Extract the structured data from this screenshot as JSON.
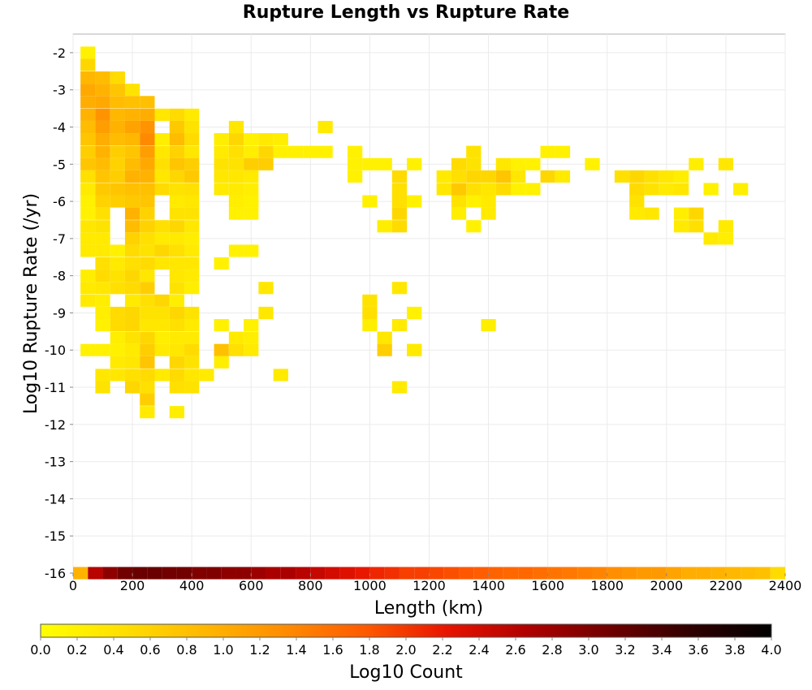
{
  "chart_data": {
    "type": "heatmap",
    "title": "Rupture Length vs Rupture Rate",
    "xlabel": "Length (km)",
    "ylabel": "Log10 Rupture Rate (/yr)",
    "xlim": [
      0,
      2400
    ],
    "ylim": [
      -16,
      -1.5
    ],
    "x_ticks": [
      "0",
      "200",
      "400",
      "600",
      "800",
      "1000",
      "1200",
      "1400",
      "1600",
      "1800",
      "2000",
      "2200",
      "2400"
    ],
    "y_ticks": [
      "-2",
      "-3",
      "-4",
      "-5",
      "-6",
      "-7",
      "-8",
      "-9",
      "-10",
      "-11",
      "-12",
      "-13",
      "-14",
      "-15",
      "-16"
    ],
    "bin_width_x": 50,
    "bin_height_y": 0.33,
    "colorbar": {
      "label": "Log10 Count",
      "range": [
        0,
        4
      ],
      "ticks": [
        "0.0",
        "0.2",
        "0.4",
        "0.6",
        "0.8",
        "1.0",
        "1.2",
        "1.4",
        "1.6",
        "1.8",
        "2.0",
        "2.2",
        "2.4",
        "2.6",
        "2.8",
        "3.0",
        "3.2",
        "3.4",
        "3.6",
        "3.8",
        "4.0"
      ],
      "colors": [
        "#ffff00",
        "#ffe000",
        "#ffb800",
        "#ff8c00",
        "#ff5a00",
        "#e81400",
        "#b00000",
        "#700000",
        "#300000",
        "#000000"
      ]
    },
    "bottom_row": {
      "y": -16,
      "values": [
        0.95,
        2.6,
        2.9,
        3.1,
        3.15,
        3.15,
        3.1,
        3.1,
        3.0,
        3.0,
        2.9,
        2.9,
        2.8,
        2.7,
        2.7,
        2.6,
        2.5,
        2.4,
        2.3,
        2.2,
        2.1,
        2.05,
        1.95,
        1.95,
        1.9,
        1.85,
        1.8,
        1.75,
        1.7,
        1.65,
        1.65,
        1.6,
        1.55,
        1.5,
        1.45,
        1.4,
        1.3,
        1.25,
        1.2,
        1.2,
        1.1,
        1.0,
        1.0,
        0.95,
        0.9,
        0.85,
        0.8,
        0.5
      ]
    },
    "cells": [
      [
        50,
        -2.0,
        0.2
      ],
      [
        50,
        -2.33,
        0.55
      ],
      [
        50,
        -2.67,
        0.9
      ],
      [
        50,
        -3.0,
        1.05
      ],
      [
        50,
        -3.33,
        1.0
      ],
      [
        50,
        -3.67,
        0.95
      ],
      [
        50,
        -4.0,
        0.85
      ],
      [
        50,
        -4.33,
        0.75
      ],
      [
        50,
        -4.67,
        0.65
      ],
      [
        50,
        -5.0,
        0.75
      ],
      [
        50,
        -5.33,
        0.45
      ],
      [
        50,
        -5.67,
        0.3
      ],
      [
        50,
        -6.0,
        0.2
      ],
      [
        50,
        -6.33,
        0.2
      ],
      [
        50,
        -6.67,
        0.35
      ],
      [
        50,
        -7.0,
        0.3
      ],
      [
        50,
        -7.33,
        0.3
      ],
      [
        50,
        -8.0,
        0.25
      ],
      [
        50,
        -8.33,
        0.3
      ],
      [
        50,
        -8.67,
        0.3
      ],
      [
        50,
        -10.0,
        0.2
      ],
      [
        100,
        -2.67,
        0.85
      ],
      [
        100,
        -3.0,
        0.95
      ],
      [
        100,
        -3.33,
        1.05
      ],
      [
        100,
        -3.67,
        1.25
      ],
      [
        100,
        -4.0,
        1.15
      ],
      [
        100,
        -4.33,
        1.0
      ],
      [
        100,
        -4.67,
        0.95
      ],
      [
        100,
        -5.0,
        0.85
      ],
      [
        100,
        -5.33,
        0.75
      ],
      [
        100,
        -5.67,
        0.7
      ],
      [
        100,
        -6.0,
        0.6
      ],
      [
        100,
        -6.33,
        0.45
      ],
      [
        100,
        -6.67,
        0.4
      ],
      [
        100,
        -7.0,
        0.3
      ],
      [
        100,
        -7.33,
        0.3
      ],
      [
        100,
        -7.67,
        0.45
      ],
      [
        100,
        -8.0,
        0.5
      ],
      [
        100,
        -8.33,
        0.35
      ],
      [
        100,
        -8.67,
        0.25
      ],
      [
        100,
        -9.0,
        0.25
      ],
      [
        100,
        -9.33,
        0.2
      ],
      [
        100,
        -10.0,
        0.2
      ],
      [
        100,
        -10.67,
        0.35
      ],
      [
        100,
        -11.0,
        0.4
      ],
      [
        150,
        -2.67,
        0.5
      ],
      [
        150,
        -3.0,
        0.75
      ],
      [
        150,
        -3.33,
        0.85
      ],
      [
        150,
        -3.67,
        0.9
      ],
      [
        150,
        -4.0,
        0.95
      ],
      [
        150,
        -4.33,
        0.85
      ],
      [
        150,
        -4.67,
        0.65
      ],
      [
        150,
        -5.0,
        0.6
      ],
      [
        150,
        -5.33,
        0.65
      ],
      [
        150,
        -5.67,
        0.75
      ],
      [
        150,
        -6.0,
        0.65
      ],
      [
        150,
        -7.33,
        0.2
      ],
      [
        150,
        -7.67,
        0.3
      ],
      [
        150,
        -8.0,
        0.4
      ],
      [
        150,
        -8.33,
        0.45
      ],
      [
        150,
        -9.0,
        0.5
      ],
      [
        150,
        -9.33,
        0.5
      ],
      [
        150,
        -9.67,
        0.25
      ],
      [
        150,
        -10.0,
        0.2
      ],
      [
        150,
        -10.33,
        0.3
      ],
      [
        150,
        -10.67,
        0.35
      ],
      [
        200,
        -3.0,
        0.4
      ],
      [
        200,
        -3.33,
        0.8
      ],
      [
        200,
        -3.67,
        0.95
      ],
      [
        200,
        -4.0,
        1.1
      ],
      [
        200,
        -4.33,
        0.9
      ],
      [
        200,
        -4.67,
        0.75
      ],
      [
        200,
        -5.0,
        0.85
      ],
      [
        200,
        -5.33,
        0.95
      ],
      [
        200,
        -5.67,
        0.8
      ],
      [
        200,
        -6.0,
        0.7
      ],
      [
        200,
        -6.33,
        0.95
      ],
      [
        200,
        -6.67,
        0.85
      ],
      [
        200,
        -7.0,
        0.6
      ],
      [
        200,
        -7.33,
        0.5
      ],
      [
        200,
        -7.67,
        0.45
      ],
      [
        200,
        -8.0,
        0.55
      ],
      [
        200,
        -8.33,
        0.5
      ],
      [
        200,
        -8.67,
        0.3
      ],
      [
        200,
        -9.0,
        0.55
      ],
      [
        200,
        -9.33,
        0.55
      ],
      [
        200,
        -9.67,
        0.4
      ],
      [
        200,
        -10.0,
        0.3
      ],
      [
        200,
        -10.33,
        0.35
      ],
      [
        200,
        -10.67,
        0.45
      ],
      [
        200,
        -11.0,
        0.55
      ],
      [
        250,
        -3.33,
        0.8
      ],
      [
        250,
        -3.67,
        1.0
      ],
      [
        250,
        -4.0,
        1.25
      ],
      [
        250,
        -4.33,
        1.35
      ],
      [
        250,
        -4.67,
        1.15
      ],
      [
        250,
        -5.0,
        1.05
      ],
      [
        250,
        -5.33,
        0.95
      ],
      [
        250,
        -5.67,
        0.8
      ],
      [
        250,
        -6.0,
        0.75
      ],
      [
        250,
        -6.33,
        0.6
      ],
      [
        250,
        -6.67,
        0.6
      ],
      [
        250,
        -7.0,
        0.45
      ],
      [
        250,
        -7.33,
        0.4
      ],
      [
        250,
        -7.67,
        0.5
      ],
      [
        250,
        -8.0,
        0.35
      ],
      [
        250,
        -8.33,
        0.65
      ],
      [
        250,
        -8.67,
        0.45
      ],
      [
        250,
        -9.0,
        0.4
      ],
      [
        250,
        -9.33,
        0.35
      ],
      [
        250,
        -9.67,
        0.55
      ],
      [
        250,
        -10.0,
        0.65
      ],
      [
        250,
        -10.33,
        0.75
      ],
      [
        250,
        -10.67,
        0.5
      ],
      [
        250,
        -11.0,
        0.45
      ],
      [
        250,
        -11.33,
        0.65
      ],
      [
        250,
        -11.67,
        0.3
      ],
      [
        300,
        -3.67,
        0.35
      ],
      [
        300,
        -4.33,
        0.25
      ],
      [
        300,
        -4.67,
        0.35
      ],
      [
        300,
        -5.0,
        0.45
      ],
      [
        300,
        -5.33,
        0.35
      ],
      [
        300,
        -5.67,
        0.5
      ],
      [
        300,
        -6.67,
        0.45
      ],
      [
        300,
        -7.0,
        0.3
      ],
      [
        300,
        -7.33,
        0.55
      ],
      [
        300,
        -7.67,
        0.35
      ],
      [
        300,
        -8.67,
        0.55
      ],
      [
        300,
        -9.0,
        0.4
      ],
      [
        300,
        -9.33,
        0.35
      ],
      [
        300,
        -9.67,
        0.25
      ],
      [
        300,
        -10.0,
        0.3
      ],
      [
        300,
        -10.67,
        0.3
      ],
      [
        350,
        -3.67,
        0.5
      ],
      [
        350,
        -4.0,
        0.7
      ],
      [
        350,
        -4.33,
        0.85
      ],
      [
        350,
        -4.67,
        0.6
      ],
      [
        350,
        -5.0,
        0.75
      ],
      [
        350,
        -5.33,
        0.55
      ],
      [
        350,
        -5.67,
        0.4
      ],
      [
        350,
        -6.0,
        0.3
      ],
      [
        350,
        -6.33,
        0.4
      ],
      [
        350,
        -6.67,
        0.55
      ],
      [
        350,
        -7.0,
        0.3
      ],
      [
        350,
        -7.33,
        0.45
      ],
      [
        350,
        -7.67,
        0.35
      ],
      [
        350,
        -8.0,
        0.35
      ],
      [
        350,
        -8.33,
        0.4
      ],
      [
        350,
        -8.67,
        0.25
      ],
      [
        350,
        -9.0,
        0.55
      ],
      [
        350,
        -9.33,
        0.45
      ],
      [
        350,
        -9.67,
        0.3
      ],
      [
        350,
        -10.0,
        0.35
      ],
      [
        350,
        -10.33,
        0.55
      ],
      [
        350,
        -10.67,
        0.5
      ],
      [
        350,
        -11.0,
        0.45
      ],
      [
        350,
        -11.67,
        0.25
      ],
      [
        400,
        -3.67,
        0.3
      ],
      [
        400,
        -4.0,
        0.4
      ],
      [
        400,
        -4.33,
        0.5
      ],
      [
        400,
        -4.67,
        0.35
      ],
      [
        400,
        -5.0,
        0.65
      ],
      [
        400,
        -5.33,
        0.7
      ],
      [
        400,
        -5.67,
        0.45
      ],
      [
        400,
        -6.0,
        0.35
      ],
      [
        400,
        -6.33,
        0.4
      ],
      [
        400,
        -6.67,
        0.35
      ],
      [
        400,
        -7.0,
        0.25
      ],
      [
        400,
        -7.33,
        0.3
      ],
      [
        400,
        -7.67,
        0.35
      ],
      [
        400,
        -8.0,
        0.3
      ],
      [
        400,
        -8.33,
        0.25
      ],
      [
        400,
        -9.0,
        0.4
      ],
      [
        400,
        -9.33,
        0.3
      ],
      [
        400,
        -9.67,
        0.3
      ],
      [
        400,
        -10.0,
        0.5
      ],
      [
        400,
        -10.33,
        0.4
      ],
      [
        400,
        -10.67,
        0.35
      ],
      [
        400,
        -11.0,
        0.4
      ],
      [
        450,
        -10.67,
        0.3
      ],
      [
        500,
        -4.33,
        0.25
      ],
      [
        500,
        -4.67,
        0.3
      ],
      [
        500,
        -5.0,
        0.4
      ],
      [
        500,
        -5.33,
        0.35
      ],
      [
        500,
        -5.67,
        0.3
      ],
      [
        500,
        -7.67,
        0.2
      ],
      [
        500,
        -9.33,
        0.2
      ],
      [
        500,
        -10.0,
        0.8
      ],
      [
        500,
        -10.33,
        0.25
      ],
      [
        550,
        -4.0,
        0.35
      ],
      [
        550,
        -4.33,
        0.55
      ],
      [
        550,
        -4.67,
        0.45
      ],
      [
        550,
        -5.0,
        0.4
      ],
      [
        550,
        -5.33,
        0.35
      ],
      [
        550,
        -5.67,
        0.3
      ],
      [
        550,
        -6.0,
        0.25
      ],
      [
        550,
        -6.33,
        0.2
      ],
      [
        550,
        -7.33,
        0.2
      ],
      [
        550,
        -9.67,
        0.3
      ],
      [
        550,
        -10.0,
        0.45
      ],
      [
        600,
        -4.33,
        0.2
      ],
      [
        600,
        -4.67,
        0.25
      ],
      [
        600,
        -5.0,
        0.65
      ],
      [
        600,
        -5.33,
        0.3
      ],
      [
        600,
        -5.67,
        0.25
      ],
      [
        600,
        -6.0,
        0.2
      ],
      [
        600,
        -6.33,
        0.2
      ],
      [
        600,
        -9.67,
        0.25
      ],
      [
        600,
        -10.0,
        0.3
      ],
      [
        650,
        -4.33,
        0.3
      ],
      [
        650,
        -4.67,
        0.55
      ],
      [
        650,
        -5.0,
        0.65
      ],
      [
        650,
        -8.33,
        0.35
      ],
      [
        650,
        -9.0,
        0.35
      ],
      [
        700,
        -4.33,
        0.25
      ],
      [
        700,
        -4.67,
        0.2
      ],
      [
        700,
        -10.67,
        0.3
      ],
      [
        750,
        -4.67,
        0.2
      ],
      [
        800,
        -4.67,
        0.2
      ],
      [
        850,
        -4.67,
        0.2
      ],
      [
        850,
        -4.0,
        0.3
      ],
      [
        950,
        -4.67,
        0.2
      ],
      [
        950,
        -5.0,
        0.2
      ],
      [
        1000,
        -5.0,
        0.2
      ],
      [
        1050,
        -5.0,
        0.2
      ],
      [
        950,
        -5.33,
        0.2
      ],
      [
        1000,
        -6.0,
        0.2
      ],
      [
        1050,
        -6.67,
        0.25
      ],
      [
        1100,
        -5.33,
        0.5
      ],
      [
        1100,
        -5.67,
        0.45
      ],
      [
        1100,
        -6.0,
        0.45
      ],
      [
        1100,
        -6.33,
        0.55
      ],
      [
        1100,
        -6.67,
        0.5
      ],
      [
        1100,
        -8.33,
        0.35
      ],
      [
        1100,
        -9.33,
        0.3
      ],
      [
        1100,
        -11.0,
        0.3
      ],
      [
        1150,
        -5.0,
        0.2
      ],
      [
        1150,
        -6.0,
        0.2
      ],
      [
        1150,
        -9.0,
        0.2
      ],
      [
        1150,
        -10.0,
        0.2
      ],
      [
        1000,
        -8.67,
        0.4
      ],
      [
        1000,
        -9.0,
        0.45
      ],
      [
        1000,
        -9.33,
        0.25
      ],
      [
        1050,
        -9.67,
        0.35
      ],
      [
        1050,
        -10.0,
        0.65
      ],
      [
        1150,
        -10.0,
        0.3
      ],
      [
        1250,
        -5.33,
        0.3
      ],
      [
        1250,
        -5.67,
        0.35
      ],
      [
        1300,
        -5.0,
        0.5
      ],
      [
        1300,
        -5.33,
        0.45
      ],
      [
        1300,
        -5.67,
        0.7
      ],
      [
        1300,
        -6.0,
        0.4
      ],
      [
        1300,
        -6.33,
        0.25
      ],
      [
        1350,
        -4.67,
        0.4
      ],
      [
        1350,
        -5.0,
        0.4
      ],
      [
        1350,
        -5.33,
        0.55
      ],
      [
        1350,
        -5.67,
        0.45
      ],
      [
        1350,
        -6.0,
        0.2
      ],
      [
        1350,
        -6.67,
        0.2
      ],
      [
        1400,
        -5.33,
        0.55
      ],
      [
        1400,
        -5.67,
        0.35
      ],
      [
        1400,
        -6.0,
        0.3
      ],
      [
        1400,
        -6.33,
        0.3
      ],
      [
        1400,
        -9.33,
        0.25
      ],
      [
        1450,
        -5.0,
        0.35
      ],
      [
        1450,
        -5.33,
        0.75
      ],
      [
        1450,
        -5.67,
        0.5
      ],
      [
        1500,
        -5.0,
        0.2
      ],
      [
        1500,
        -5.33,
        0.35
      ],
      [
        1500,
        -5.67,
        0.2
      ],
      [
        1550,
        -5.0,
        0.2
      ],
      [
        1550,
        -5.67,
        0.2
      ],
      [
        1600,
        -4.67,
        0.2
      ],
      [
        1600,
        -5.33,
        0.55
      ],
      [
        1650,
        -4.67,
        0.2
      ],
      [
        1650,
        -5.33,
        0.3
      ],
      [
        1750,
        -5.0,
        0.2
      ],
      [
        1850,
        -5.33,
        0.45
      ],
      [
        1900,
        -5.33,
        0.55
      ],
      [
        1900,
        -5.67,
        0.5
      ],
      [
        1900,
        -6.0,
        0.4
      ],
      [
        1900,
        -6.33,
        0.3
      ],
      [
        1950,
        -5.33,
        0.45
      ],
      [
        1950,
        -5.67,
        0.4
      ],
      [
        1950,
        -6.33,
        0.35
      ],
      [
        2000,
        -5.33,
        0.35
      ],
      [
        2000,
        -5.67,
        0.3
      ],
      [
        2050,
        -5.33,
        0.25
      ],
      [
        2050,
        -5.67,
        0.35
      ],
      [
        2050,
        -6.33,
        0.25
      ],
      [
        2050,
        -6.67,
        0.3
      ],
      [
        2100,
        -5.0,
        0.25
      ],
      [
        2100,
        -6.33,
        0.55
      ],
      [
        2100,
        -6.67,
        0.45
      ],
      [
        2150,
        -5.67,
        0.2
      ],
      [
        2150,
        -7.0,
        0.3
      ],
      [
        2200,
        -5.0,
        0.35
      ],
      [
        2200,
        -6.67,
        0.3
      ],
      [
        2200,
        -7.0,
        0.25
      ],
      [
        2250,
        -5.67,
        0.25
      ],
      [
        600,
        -6.0,
        0.2
      ],
      [
        600,
        -9.33,
        0.2
      ],
      [
        600,
        -7.33,
        0.2
      ]
    ]
  }
}
